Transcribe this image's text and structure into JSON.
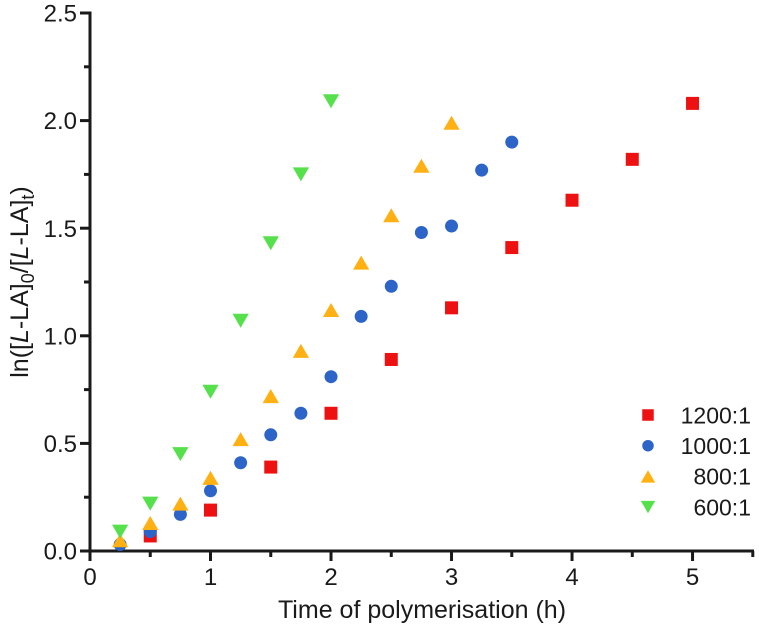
{
  "figure": {
    "background": "#ffffff",
    "axis_color": "#1a1a1a"
  },
  "chart_data": {
    "type": "scatter",
    "title": "",
    "xlabel": "Time of polymerisation (h)",
    "ylabel": "ln([L-LA]0/[L-LA]t)",
    "ylabel_rich": [
      {
        "text": "ln(["
      },
      {
        "text": "L",
        "italic": true
      },
      {
        "text": "-LA]"
      },
      {
        "text": "0",
        "sub": true
      },
      {
        "text": "/["
      },
      {
        "text": "L",
        "italic": true
      },
      {
        "text": "-LA]"
      },
      {
        "text": "t",
        "sub": true
      },
      {
        "text": ")"
      }
    ],
    "xlim": [
      0,
      5.51
    ],
    "ylim": [
      0,
      2.5
    ],
    "grid": false,
    "x_axis": {
      "major_values": [
        0,
        1,
        2,
        3,
        4,
        5
      ],
      "major_labels": [
        "0",
        "1",
        "2",
        "3",
        "4",
        "5"
      ],
      "minor_values": [
        0.5,
        1.5,
        2.5,
        3.5,
        4.5,
        5.5
      ]
    },
    "y_axis": {
      "major_values": [
        0,
        0.5,
        1,
        1.5,
        2,
        2.5
      ],
      "major_labels": [
        "0.0",
        "0.5",
        "1.0",
        "1.5",
        "2.0",
        "2.5"
      ],
      "minor_values": [
        0.25,
        0.75,
        1.25,
        1.75,
        2.25
      ]
    },
    "legend": {
      "position": "lower-right"
    },
    "series": [
      {
        "name": "1200:1",
        "marker": "square",
        "color": "#ee1111",
        "points": [
          [
            0.5,
            0.07
          ],
          [
            1,
            0.19
          ],
          [
            1.5,
            0.39
          ],
          [
            2,
            0.64
          ],
          [
            2.5,
            0.89
          ],
          [
            3,
            1.13
          ],
          [
            3.5,
            1.41
          ],
          [
            4,
            1.63
          ],
          [
            4.5,
            1.82
          ],
          [
            5,
            2.08
          ]
        ]
      },
      {
        "name": "1000:1",
        "marker": "circle",
        "color": "#2d64c8",
        "points": [
          [
            0.25,
            0.03
          ],
          [
            0.5,
            0.09
          ],
          [
            0.75,
            0.17
          ],
          [
            1,
            0.28
          ],
          [
            1.25,
            0.41
          ],
          [
            1.5,
            0.54
          ],
          [
            1.75,
            0.64
          ],
          [
            2,
            0.81
          ],
          [
            2.25,
            1.09
          ],
          [
            2.5,
            1.23
          ],
          [
            2.75,
            1.48
          ],
          [
            3,
            1.51
          ],
          [
            3.25,
            1.77
          ],
          [
            3.5,
            1.9
          ]
        ]
      },
      {
        "name": "800:1",
        "marker": "triangle-up",
        "color": "#ffb012",
        "points": [
          [
            0.25,
            0.05
          ],
          [
            0.5,
            0.13
          ],
          [
            0.75,
            0.22
          ],
          [
            1,
            0.34
          ],
          [
            1.25,
            0.52
          ],
          [
            1.5,
            0.72
          ],
          [
            1.75,
            0.93
          ],
          [
            2,
            1.12
          ],
          [
            2.25,
            1.34
          ],
          [
            2.5,
            1.56
          ],
          [
            2.75,
            1.79
          ],
          [
            3,
            1.99
          ]
        ]
      },
      {
        "name": "600:1",
        "marker": "triangle-down",
        "color": "#56e04c",
        "points": [
          [
            0.25,
            0.09
          ],
          [
            0.5,
            0.22
          ],
          [
            0.75,
            0.45
          ],
          [
            1,
            0.74
          ],
          [
            1.25,
            1.07
          ],
          [
            1.5,
            1.43
          ],
          [
            1.75,
            1.75
          ],
          [
            2,
            2.09
          ]
        ]
      }
    ]
  }
}
